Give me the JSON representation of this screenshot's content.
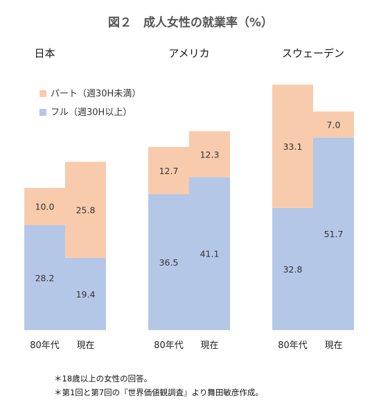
{
  "chart_data": {
    "type": "bar",
    "stacked": true,
    "title": "図２　成人女性の就業率（%）",
    "unit": "%",
    "legend": {
      "placement": "top-left",
      "items": [
        {
          "name": "パート（週30H未満）",
          "color": "#f8cbad"
        },
        {
          "name": "フル（週30H以上）",
          "color": "#b4c7e7"
        }
      ]
    },
    "groups": [
      {
        "name": "日本",
        "bars": [
          {
            "category": "80年代",
            "full": 28.2,
            "part": 10.0
          },
          {
            "category": "現在",
            "full": 19.4,
            "part": 25.8
          }
        ]
      },
      {
        "name": "アメリカ",
        "bars": [
          {
            "category": "80年代",
            "full": 36.5,
            "part": 12.7
          },
          {
            "category": "現在",
            "full": 41.1,
            "part": 12.3
          }
        ]
      },
      {
        "name": "スウェーデン",
        "bars": [
          {
            "category": "80年代",
            "full": 32.8,
            "part": 33.1
          },
          {
            "category": "現在",
            "full": 51.7,
            "part": 7.0
          }
        ]
      }
    ],
    "grid": false
  },
  "notes": [
    "＊18歳以上の女性の回答。",
    "＊第1回と第7回の『世界価値観調査』より舞田敏彦作成。"
  ]
}
